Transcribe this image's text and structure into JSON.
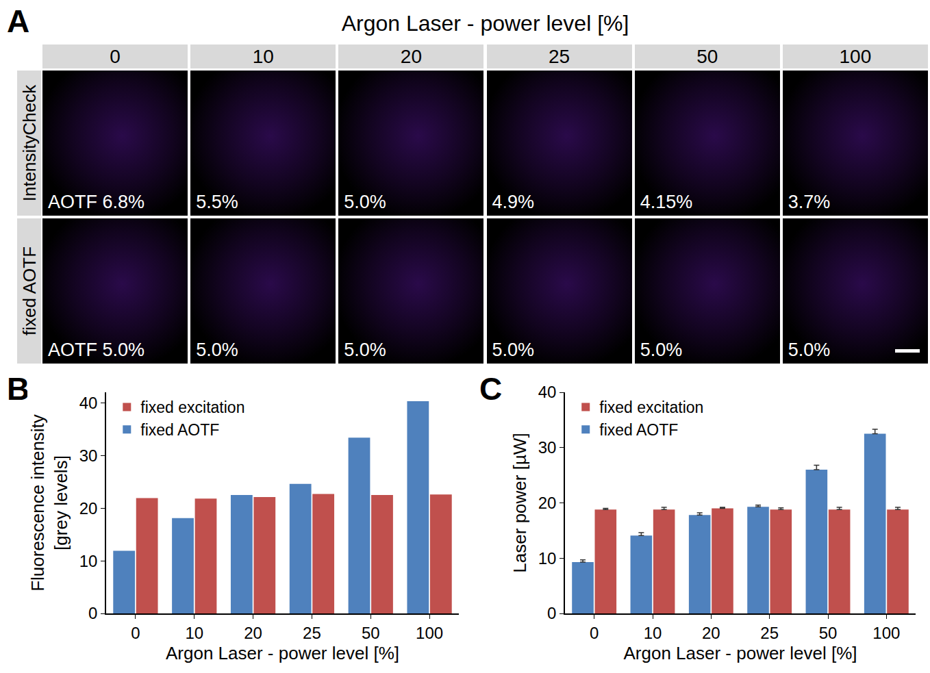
{
  "panel_a": {
    "title": "A",
    "header": "Argon Laser - power level [%]",
    "columns": [
      "0",
      "10",
      "20",
      "25",
      "50",
      "100"
    ],
    "rows": [
      {
        "label": "IntensityCheck",
        "aotf": [
          "AOTF 6.8%",
          "5.5%",
          "5.0%",
          "4.9%",
          "4.15%",
          "3.7%"
        ]
      },
      {
        "label": "fixed AOTF",
        "aotf": [
          "AOTF 5.0%",
          "5.0%",
          "5.0%",
          "5.0%",
          "5.0%",
          "5.0%"
        ]
      }
    ]
  },
  "chart_data": [
    {
      "type": "bar",
      "title": "B",
      "x_label": "Argon Laser - power level [%]",
      "y_label": "Fluorescence intensity [grey levels]",
      "categories": [
        "0",
        "10",
        "20",
        "25",
        "50",
        "100"
      ],
      "series": [
        {
          "name": "fixed AOTF",
          "color": "#4f81bd",
          "values": [
            11.9,
            18.1,
            22.5,
            24.6,
            33.4,
            40.3
          ]
        },
        {
          "name": "fixed excitation",
          "color": "#c0504d",
          "values": [
            21.9,
            21.8,
            22.1,
            22.7,
            22.5,
            22.6
          ]
        }
      ],
      "ylim": [
        0,
        42
      ],
      "yticks": [
        0,
        10,
        20,
        30,
        40
      ],
      "grid": false,
      "legend": "top-left"
    },
    {
      "type": "bar",
      "title": "C",
      "x_label": "Argon Laser - power level [%]",
      "y_label": "Laser power [µW]",
      "categories": [
        "0",
        "10",
        "20",
        "25",
        "50",
        "100"
      ],
      "series": [
        {
          "name": "fixed AOTF",
          "color": "#4f81bd",
          "values": [
            9.3,
            14.1,
            17.8,
            19.3,
            26.0,
            32.5
          ],
          "errors": [
            0.4,
            0.5,
            0.4,
            0.3,
            0.8,
            0.8
          ]
        },
        {
          "name": "fixed excitation",
          "color": "#c0504d",
          "values": [
            18.8,
            18.8,
            19.0,
            18.8,
            18.8,
            18.8
          ],
          "errors": [
            0.2,
            0.4,
            0.2,
            0.3,
            0.4,
            0.4
          ]
        }
      ],
      "ylim": [
        0,
        40
      ],
      "yticks": [
        0,
        10,
        20,
        30,
        40
      ],
      "grid": false,
      "legend": "top-left"
    }
  ]
}
